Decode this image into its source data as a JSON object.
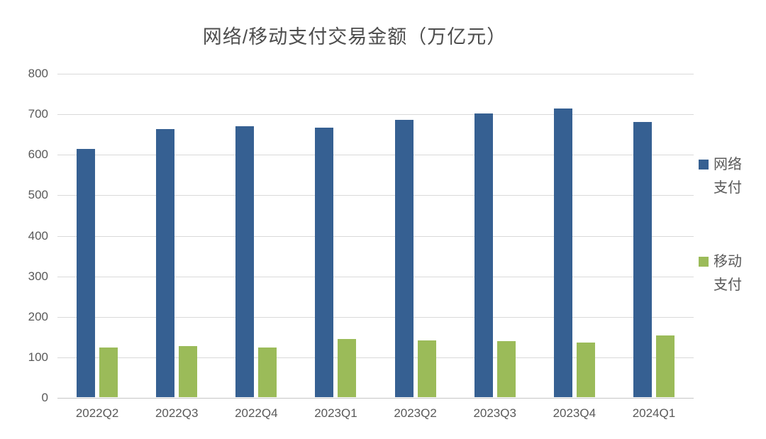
{
  "title": "网络/移动支付交易金额（万亿元）",
  "colors": {
    "background": "#ffffff",
    "title_text": "#4d4d4d",
    "axis_text": "#595959",
    "gridline": "#d9d9d9",
    "baseline": "#c6c6c6",
    "network_blue": "#366092",
    "mobile_green": "#9bbb59"
  },
  "chart_data": {
    "type": "bar",
    "title": "网络/移动支付交易金额（万亿元）",
    "xlabel": "",
    "ylabel": "",
    "categories": [
      "2022Q2",
      "2022Q3",
      "2022Q4",
      "2023Q1",
      "2023Q2",
      "2023Q3",
      "2023Q4",
      "2024Q1"
    ],
    "series": [
      {
        "name": "网络支付",
        "color": "#366092",
        "values": [
          612,
          661,
          668,
          666,
          685,
          701,
          712,
          680
        ]
      },
      {
        "name": "移动支付",
        "color": "#9bbb59",
        "values": [
          122,
          126,
          122,
          143,
          140,
          138,
          134,
          152
        ]
      }
    ],
    "ylim": [
      0,
      800
    ],
    "y_ticks": [
      0,
      100,
      200,
      300,
      400,
      500,
      600,
      700,
      800
    ],
    "grid": true,
    "legend_position": "right"
  }
}
